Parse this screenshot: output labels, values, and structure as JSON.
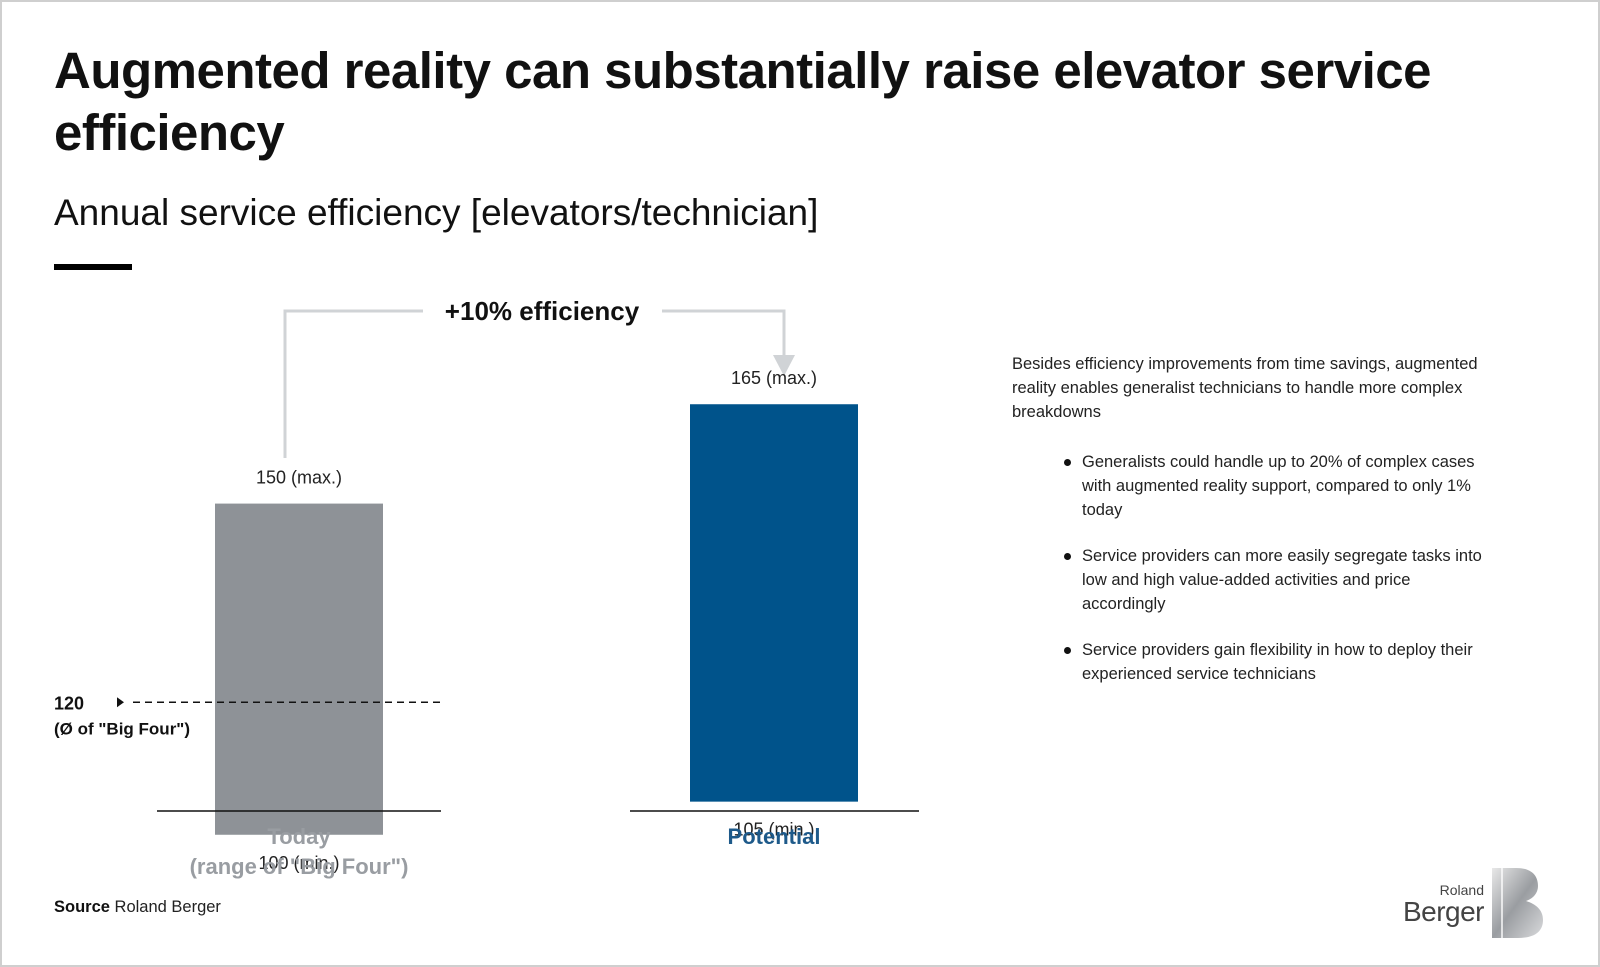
{
  "header": {
    "title": "Augmented reality can substantially raise elevator service efficiency",
    "subtitle": "Annual service efficiency [elevators/technician]"
  },
  "chart_data": {
    "type": "bar",
    "kind": "floating-range",
    "ylim": [
      90,
      175
    ],
    "categories": [
      "Today\n(range of \"Big Four\")",
      "Potential"
    ],
    "series": [
      {
        "values_min": [
          100,
          105
        ],
        "values_max": [
          150,
          165
        ]
      }
    ],
    "colors": [
      "#8e9297",
      "#00538b"
    ],
    "value_labels": {
      "max": [
        "150 (max.)",
        "165 (max.)"
      ],
      "min": [
        "100 (min.)",
        "105 (min.)"
      ]
    },
    "reference_line": {
      "value": 120,
      "label": "120",
      "sublabel": "(Ø of \"Big Four\")",
      "style": "dashed"
    },
    "annotation": {
      "text": "+10% efficiency",
      "from": "Today",
      "to": "Potential"
    },
    "category_colors": [
      "#999da2",
      "#1e5a8a"
    ]
  },
  "notes": {
    "intro": "Besides efficiency improvements from time savings, augmented reality enables generalist technicians to handle more complex breakdowns",
    "bullets": [
      "Generalists could handle up to 20% of complex cases with augmented reality support, compared to only 1% today",
      "Service providers can more easily segregate tasks into low and high value-added activities and price accordingly",
      "Service providers gain flexibility in how to deploy their experienced service technicians"
    ]
  },
  "footer": {
    "source_label": "Source",
    "source_text": "Roland Berger"
  },
  "logo": {
    "line1": "Roland",
    "line2": "Berger",
    "icon": "roland-berger-b-logo-icon"
  }
}
